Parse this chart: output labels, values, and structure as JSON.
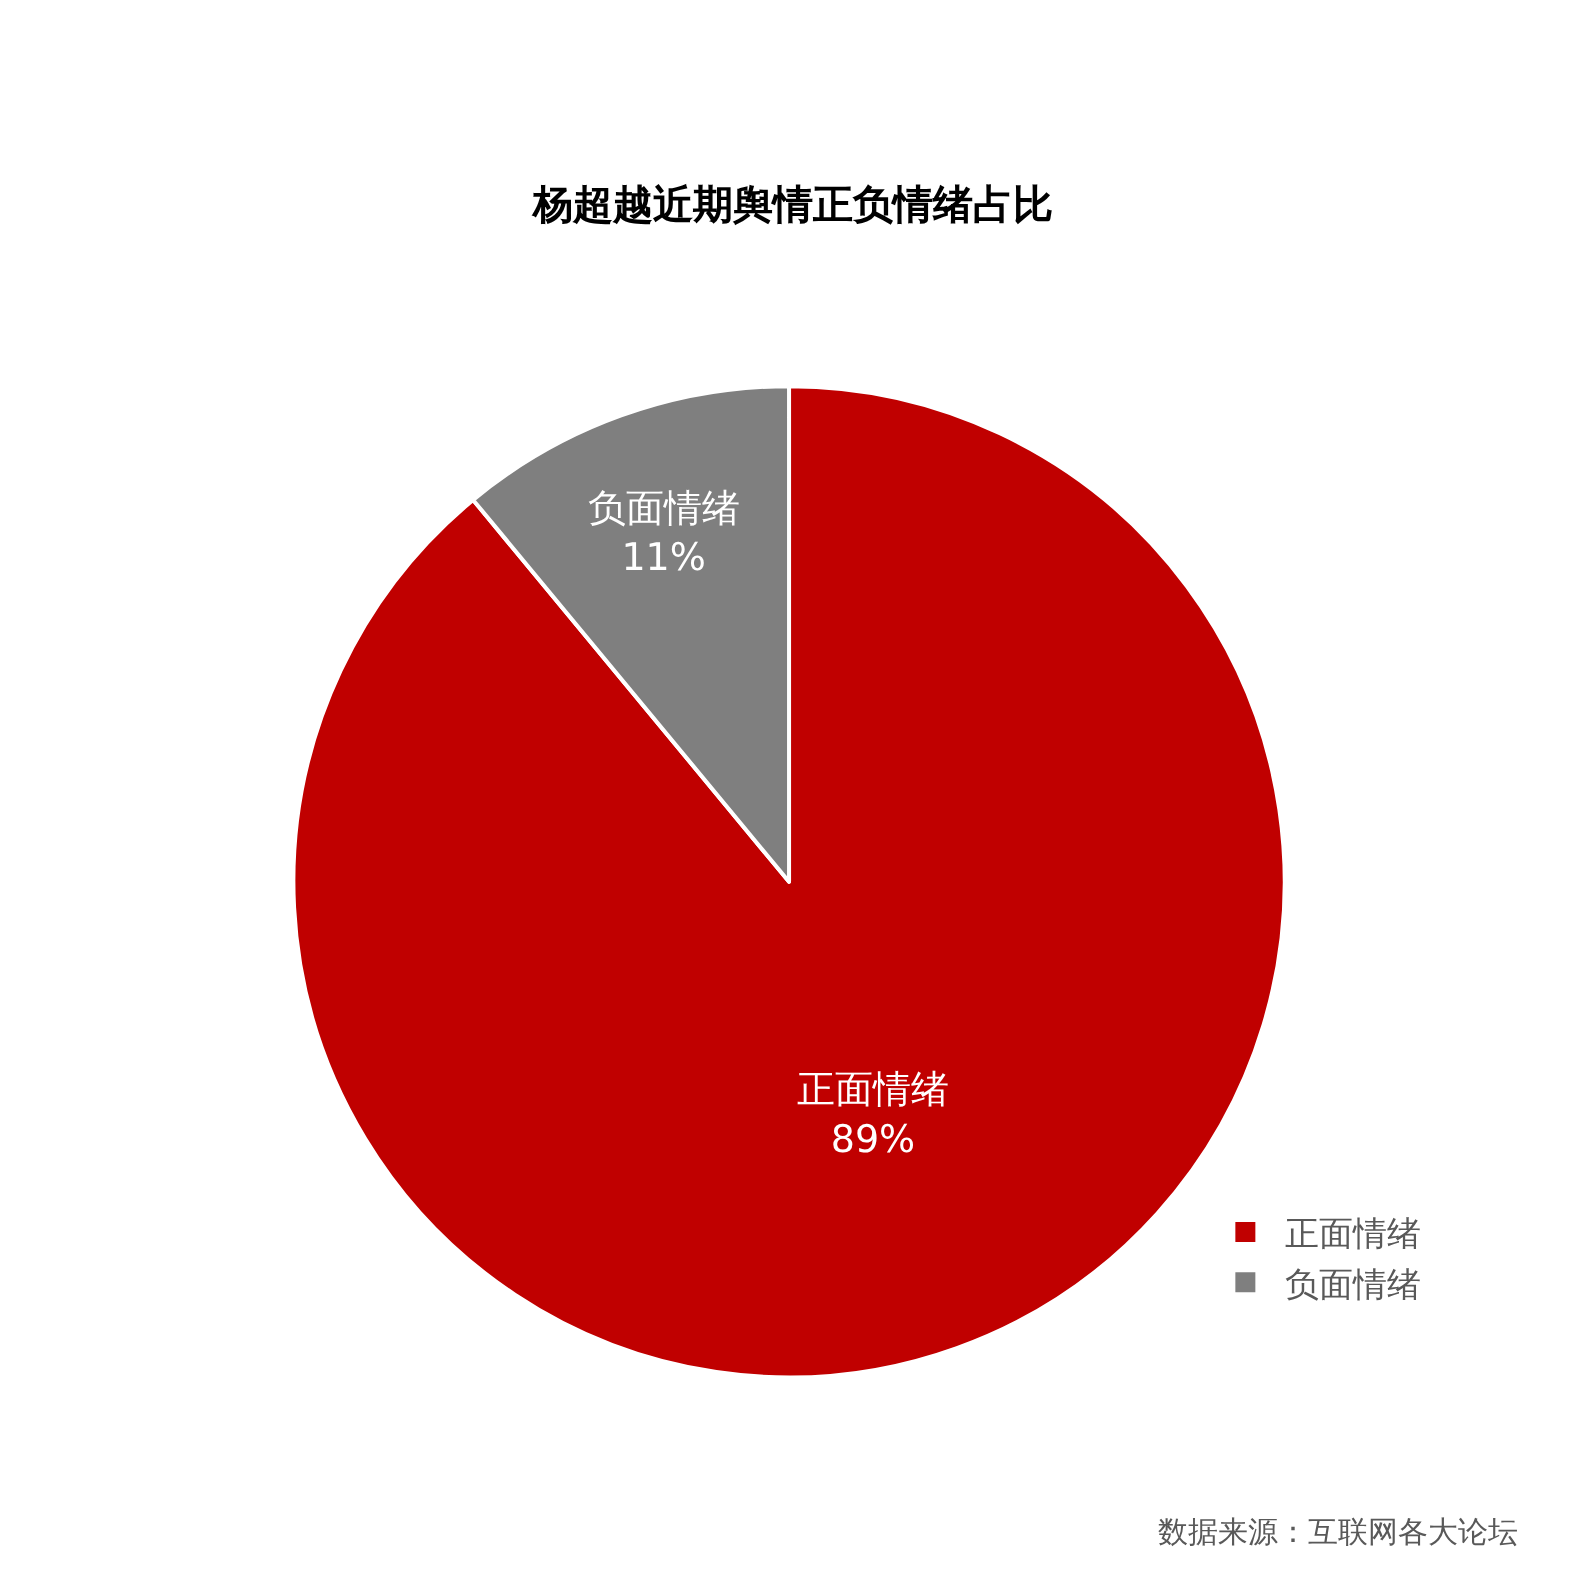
{
  "chart_data": {
    "type": "pie",
    "title": "杨超越近期舆情正负情绪占比",
    "categories": [
      "正面情绪",
      "负面情绪"
    ],
    "values": [
      89,
      11
    ],
    "value_labels": [
      "89%",
      "11%"
    ],
    "colors": [
      "#c00000",
      "#7f7f7f"
    ],
    "legend": "bottom right",
    "annotations": [
      "数据来源：互联网各大论坛"
    ]
  }
}
